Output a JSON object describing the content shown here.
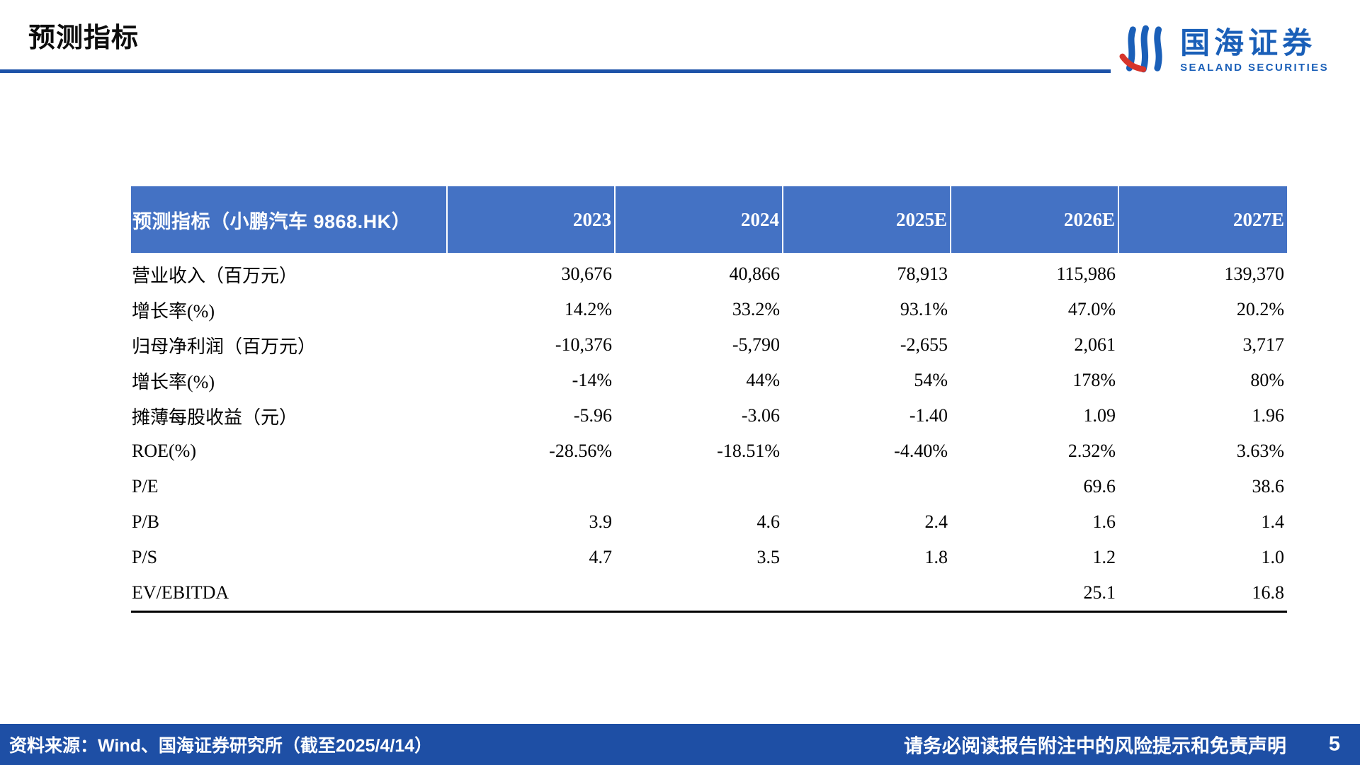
{
  "page": {
    "title": "预测指标"
  },
  "logo": {
    "name_cn": "国海证券",
    "name_en": "SEALAND SECURITIES"
  },
  "table": {
    "header": [
      "预测指标（小鹏汽车 9868.HK）",
      "2023",
      "2024",
      "2025E",
      "2026E",
      "2027E"
    ],
    "rows": [
      [
        "营业收入（百万元）",
        "30,676",
        "40,866",
        "78,913",
        "115,986",
        "139,370"
      ],
      [
        "增长率(%)",
        "14.2%",
        "33.2%",
        "93.1%",
        "47.0%",
        "20.2%"
      ],
      [
        "归母净利润（百万元）",
        "-10,376",
        "-5,790",
        "-2,655",
        "2,061",
        "3,717"
      ],
      [
        "增长率(%)",
        "-14%",
        "44%",
        "54%",
        "178%",
        "80%"
      ],
      [
        "摊薄每股收益（元）",
        "-5.96",
        "-3.06",
        "-1.40",
        "1.09",
        "1.96"
      ],
      [
        "ROE(%)",
        "-28.56%",
        "-18.51%",
        "-4.40%",
        "2.32%",
        "3.63%"
      ],
      [
        "P/E",
        "",
        "",
        "",
        "69.6",
        "38.6"
      ],
      [
        "P/B",
        "3.9",
        "4.6",
        "2.4",
        "1.6",
        "1.4"
      ],
      [
        "P/S",
        "4.7",
        "3.5",
        "1.8",
        "1.2",
        "1.0"
      ],
      [
        "EV/EBITDA",
        "",
        "",
        "",
        "25.1",
        "16.8"
      ]
    ]
  },
  "footer": {
    "source": "资料来源：Wind、国海证券研究所（截至2025/4/14）",
    "disclaimer": "请务必阅读报告附注中的风险提示和免责声明",
    "page_number": "5"
  },
  "colors": {
    "table_header_bg": "#4472C4",
    "accent_line": "#1C52A8",
    "footer_bg": "#1E4FA5",
    "logo_blue": "#1A5FB8",
    "logo_red": "#D7352B"
  }
}
